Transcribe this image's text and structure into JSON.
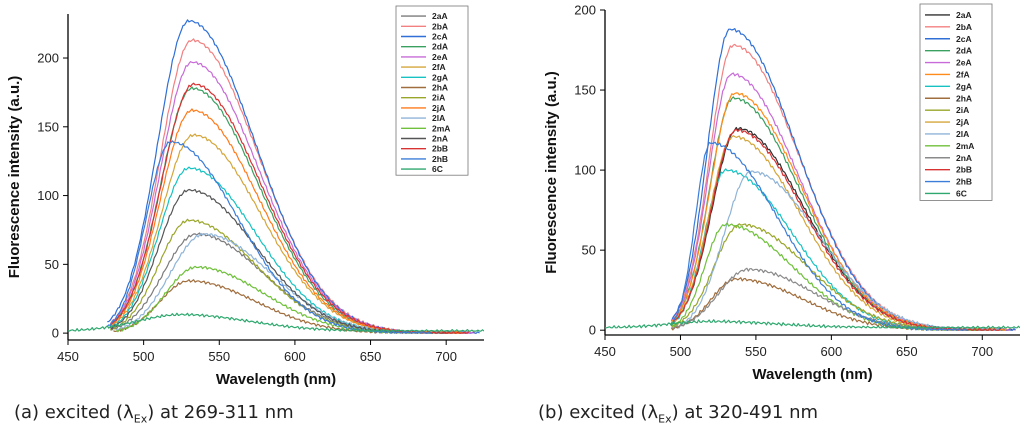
{
  "captions": {
    "a": {
      "prefix": "(a) excited (λ",
      "sub": "Ex",
      "suffix": ") at 269-311 nm"
    },
    "b": {
      "prefix": "(b) excited (λ",
      "sub": "Ex",
      "suffix": ") at 320-491 nm"
    }
  },
  "chart_data": [
    {
      "type": "line",
      "panel": "a",
      "title": "",
      "xlabel": "Wavelength (nm)",
      "ylabel": "Fluorescence intensity (a.u.)",
      "xlim": [
        450,
        725
      ],
      "ylim": [
        -5,
        232
      ],
      "xticks": [
        450,
        500,
        550,
        600,
        650,
        700
      ],
      "yticks": [
        0,
        50,
        100,
        150,
        200
      ],
      "legend_position": "top-right",
      "series": [
        {
          "name": "2aA",
          "color": "#7b7b7b",
          "peak_x": 535,
          "peak_y": 72,
          "start_x": 478,
          "end_x": 700
        },
        {
          "name": "2bA",
          "color": "#f28080",
          "peak_x": 532,
          "peak_y": 213,
          "start_x": 478,
          "end_x": 720
        },
        {
          "name": "2cA",
          "color": "#2f6fd6",
          "peak_x": 530,
          "peak_y": 227,
          "start_x": 476,
          "end_x": 722
        },
        {
          "name": "2dA",
          "color": "#3aa060",
          "peak_x": 532,
          "peak_y": 178,
          "start_x": 478,
          "end_x": 715
        },
        {
          "name": "2eA",
          "color": "#c86bd8",
          "peak_x": 532,
          "peak_y": 197,
          "start_x": 478,
          "end_x": 718
        },
        {
          "name": "2fA",
          "color": "#d4a63a",
          "peak_x": 533,
          "peak_y": 144,
          "start_x": 478,
          "end_x": 710
        },
        {
          "name": "2gA",
          "color": "#17c2c2",
          "peak_x": 530,
          "peak_y": 120,
          "start_x": 478,
          "end_x": 705
        },
        {
          "name": "2hA",
          "color": "#a06d3c",
          "peak_x": 530,
          "peak_y": 38,
          "start_x": 480,
          "end_x": 690
        },
        {
          "name": "2iA",
          "color": "#9aa62a",
          "peak_x": 530,
          "peak_y": 82,
          "start_x": 478,
          "end_x": 700
        },
        {
          "name": "2jA",
          "color": "#ff7a1a",
          "peak_x": 532,
          "peak_y": 162,
          "start_x": 478,
          "end_x": 712
        },
        {
          "name": "2lA",
          "color": "#8fb4d8",
          "peak_x": 540,
          "peak_y": 72,
          "start_x": 482,
          "end_x": 700
        },
        {
          "name": "2mA",
          "color": "#6fc03a",
          "peak_x": 535,
          "peak_y": 48,
          "start_x": 482,
          "end_x": 690
        },
        {
          "name": "2nA",
          "color": "#555555",
          "peak_x": 530,
          "peak_y": 104,
          "start_x": 478,
          "end_x": 702
        },
        {
          "name": "2bB",
          "color": "#d83232",
          "peak_x": 533,
          "peak_y": 181,
          "start_x": 478,
          "end_x": 715
        },
        {
          "name": "2hB",
          "color": "#3b7dd8",
          "peak_x": 518,
          "peak_y": 139,
          "start_x": 476,
          "end_x": 690
        },
        {
          "name": "6C",
          "color": "#2ea86e",
          "peak_x": 525,
          "peak_y": 12,
          "start_x": 450,
          "end_x": 725
        }
      ]
    },
    {
      "type": "line",
      "panel": "b",
      "title": "",
      "xlabel": "Wavelength (nm)",
      "ylabel": "Fluorescence intensity (a.u.)",
      "xlim": [
        450,
        725
      ],
      "ylim": [
        -3,
        200
      ],
      "xticks": [
        450,
        500,
        550,
        600,
        650,
        700
      ],
      "yticks": [
        0,
        50,
        100,
        150,
        200
      ],
      "legend_position": "top-right",
      "series": [
        {
          "name": "2aA",
          "color": "#303030",
          "peak_x": 538,
          "peak_y": 126,
          "start_x": 494,
          "end_x": 720
        },
        {
          "name": "2bA",
          "color": "#f28080",
          "peak_x": 535,
          "peak_y": 178,
          "start_x": 494,
          "end_x": 722
        },
        {
          "name": "2cA",
          "color": "#2f6fd6",
          "peak_x": 533,
          "peak_y": 188,
          "start_x": 494,
          "end_x": 722
        },
        {
          "name": "2dA",
          "color": "#3aa060",
          "peak_x": 535,
          "peak_y": 145,
          "start_x": 494,
          "end_x": 715
        },
        {
          "name": "2eA",
          "color": "#c86bd8",
          "peak_x": 534,
          "peak_y": 160,
          "start_x": 494,
          "end_x": 718
        },
        {
          "name": "2fA",
          "color": "#ff8c1a",
          "peak_x": 536,
          "peak_y": 148,
          "start_x": 494,
          "end_x": 716
        },
        {
          "name": "2gA",
          "color": "#17c2c2",
          "peak_x": 530,
          "peak_y": 100,
          "start_x": 494,
          "end_x": 705
        },
        {
          "name": "2hA",
          "color": "#a06d3c",
          "peak_x": 537,
          "peak_y": 32,
          "start_x": 494,
          "end_x": 700
        },
        {
          "name": "2iA",
          "color": "#9aa62a",
          "peak_x": 540,
          "peak_y": 66,
          "start_x": 494,
          "end_x": 705
        },
        {
          "name": "2jA",
          "color": "#d4a63a",
          "peak_x": 535,
          "peak_y": 121,
          "start_x": 494,
          "end_x": 712
        },
        {
          "name": "2lA",
          "color": "#8fb4d8",
          "peak_x": 547,
          "peak_y": 99,
          "start_x": 500,
          "end_x": 712
        },
        {
          "name": "2mA",
          "color": "#6fc03a",
          "peak_x": 530,
          "peak_y": 66,
          "start_x": 494,
          "end_x": 700
        },
        {
          "name": "2nA",
          "color": "#8a8a8a",
          "peak_x": 545,
          "peak_y": 38,
          "start_x": 494,
          "end_x": 705
        },
        {
          "name": "2bB",
          "color": "#d83232",
          "peak_x": 537,
          "peak_y": 125,
          "start_x": 494,
          "end_x": 712
        },
        {
          "name": "2hB",
          "color": "#3b7dd8",
          "peak_x": 520,
          "peak_y": 117,
          "start_x": 494,
          "end_x": 690
        },
        {
          "name": "6C",
          "color": "#2ea86e",
          "peak_x": 520,
          "peak_y": 4,
          "start_x": 450,
          "end_x": 725
        }
      ]
    }
  ]
}
